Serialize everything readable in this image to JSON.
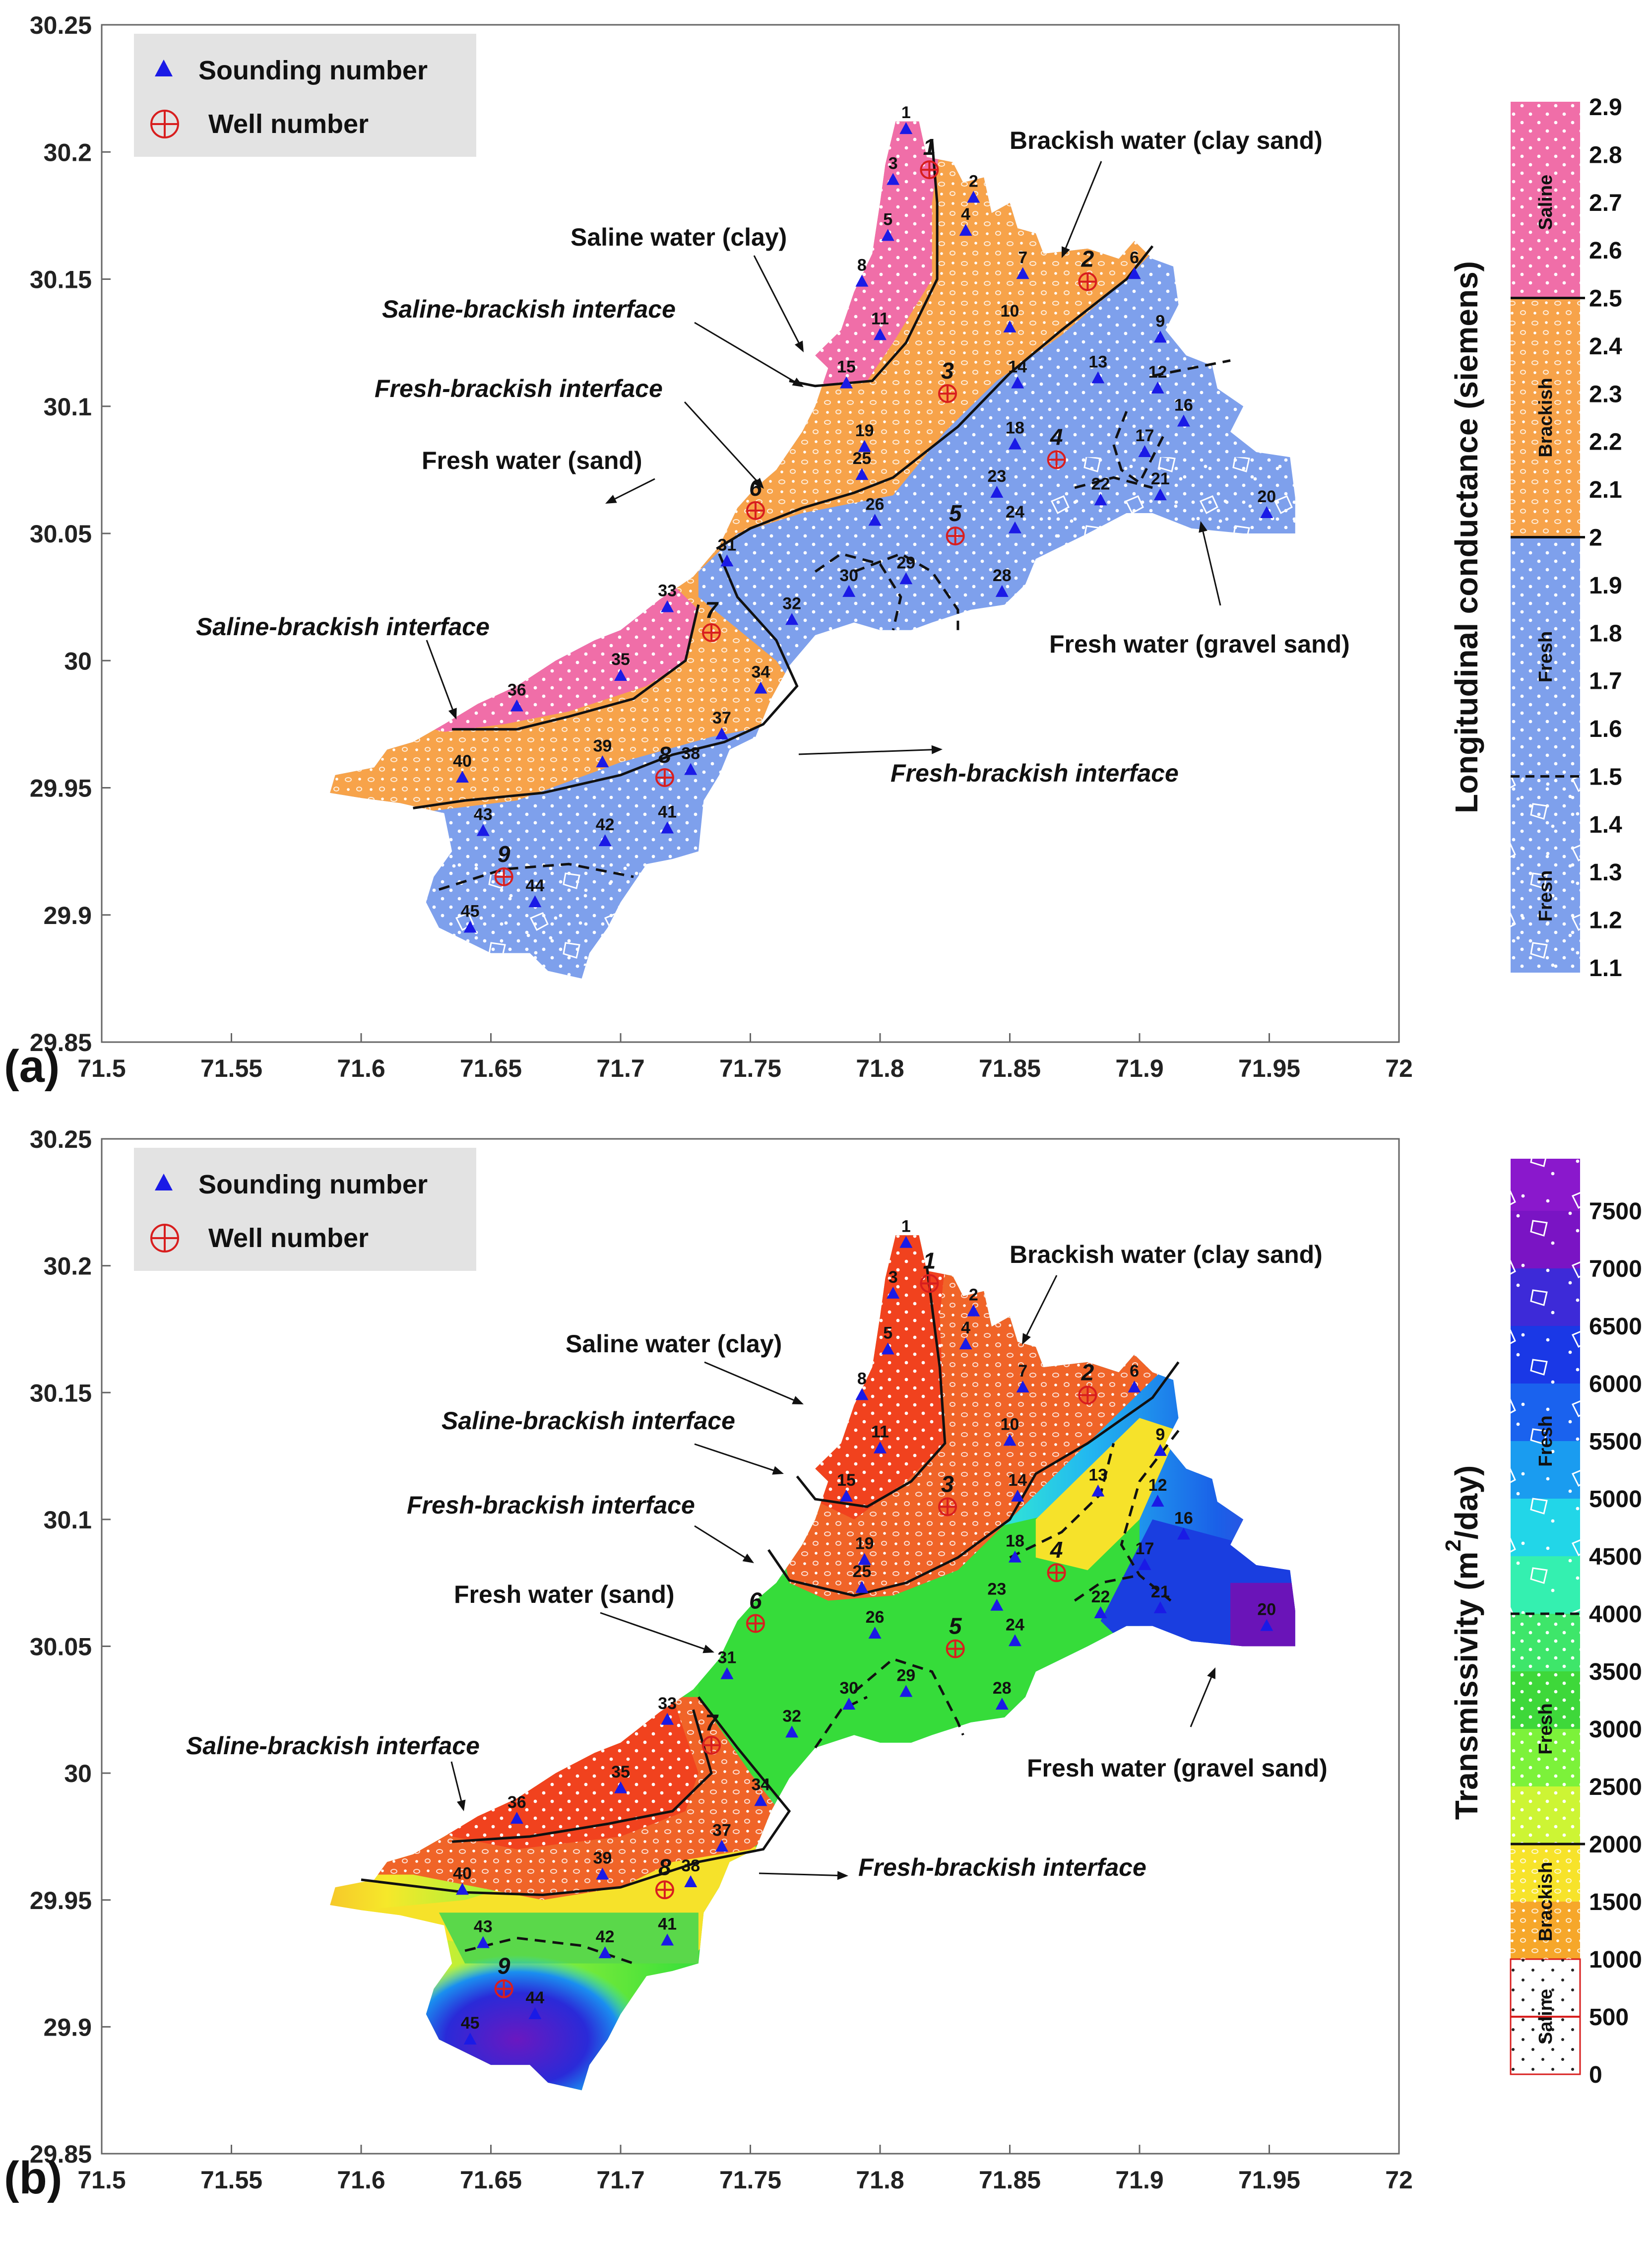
{
  "panels": [
    {
      "id": "a",
      "label": "(a)",
      "legend": {
        "sounding": "Sounding number",
        "well": "Well number"
      },
      "x_ticks": [
        "71.5",
        "71.55",
        "71.6",
        "71.65",
        "71.7",
        "71.75",
        "71.8",
        "71.85",
        "71.9",
        "71.95",
        "72"
      ],
      "y_ticks": [
        "30.25",
        "30.2",
        "30.15",
        "30.1",
        "30.05",
        "30",
        "29.95",
        "29.9",
        "29.85"
      ],
      "annotations": {
        "brackish_clay_sand": "Brackish water (clay sand)",
        "saline_clay": "Saline water (clay)",
        "saline_brackish_upper": "Saline-brackish interface",
        "fresh_brackish_upper": "Fresh-brackish interface",
        "fresh_sand": "Fresh water (sand)",
        "saline_brackish_lower": "Saline-brackish interface",
        "fresh_gravel_sand": "Fresh water (gravel sand)",
        "fresh_brackish_lower": "Fresh-brackish interface"
      },
      "colorbar": {
        "title": "Longitudinal conductance (siemens)",
        "ticks": [
          "2.9",
          "2.8",
          "2.7",
          "2.6",
          "2.5",
          "2.4",
          "2.3",
          "2.2",
          "2.1",
          "2",
          "1.9",
          "1.8",
          "1.7",
          "1.6",
          "1.5",
          "1.4",
          "1.3",
          "1.2",
          "1.1"
        ],
        "zones": [
          "Saline",
          "Brackish",
          "Fresh",
          "Fresh"
        ]
      }
    },
    {
      "id": "b",
      "label": "(b)",
      "legend": {
        "sounding": "Sounding number",
        "well": "Well number"
      },
      "x_ticks": [
        "71.5",
        "71.55",
        "71.6",
        "71.65",
        "71.7",
        "71.75",
        "71.8",
        "71.85",
        "71.9",
        "71.95",
        "72"
      ],
      "y_ticks": [
        "30.25",
        "30.2",
        "30.15",
        "30.1",
        "30.05",
        "30",
        "29.95",
        "29.9",
        "29.85"
      ],
      "annotations": {
        "brackish_clay_sand": "Brackish water (clay sand)",
        "saline_clay": "Saline water (clay)",
        "saline_brackish_upper": "Saline-brackish interface",
        "fresh_brackish_upper": "Fresh-brackish interface",
        "fresh_sand": "Fresh water (sand)",
        "saline_brackish_lower": "Saline-brackish interface",
        "fresh_gravel_sand": "Fresh water (gravel sand)",
        "fresh_brackish_lower": "Fresh-brackish interface"
      },
      "colorbar": {
        "title": "Transmissivity (m",
        "title_sup": "2",
        "title_end": "/day)",
        "ticks": [
          "7500",
          "7000",
          "6500",
          "6000",
          "5500",
          "5000",
          "4500",
          "4000",
          "3500",
          "3000",
          "2500",
          "2000",
          "1500",
          "1000",
          "500",
          "0"
        ],
        "zones": [
          "Fresh",
          "Fresh",
          "Brackish",
          "Saline"
        ]
      }
    }
  ],
  "soundings": [
    {
      "n": "1",
      "lon": 71.81,
      "lat": 30.209
    },
    {
      "n": "2",
      "lon": 71.836,
      "lat": 30.182
    },
    {
      "n": "3",
      "lon": 71.805,
      "lat": 30.189
    },
    {
      "n": "4",
      "lon": 71.833,
      "lat": 30.169
    },
    {
      "n": "5",
      "lon": 71.803,
      "lat": 30.167
    },
    {
      "n": "6",
      "lon": 71.898,
      "lat": 30.152
    },
    {
      "n": "7",
      "lon": 71.855,
      "lat": 30.152
    },
    {
      "n": "8",
      "lon": 71.793,
      "lat": 30.149
    },
    {
      "n": "9",
      "lon": 71.908,
      "lat": 30.127
    },
    {
      "n": "10",
      "lon": 71.85,
      "lat": 30.131
    },
    {
      "n": "11",
      "lon": 71.8,
      "lat": 30.128
    },
    {
      "n": "12",
      "lon": 71.907,
      "lat": 30.107
    },
    {
      "n": "13",
      "lon": 71.884,
      "lat": 30.111
    },
    {
      "n": "14",
      "lon": 71.853,
      "lat": 30.109
    },
    {
      "n": "15",
      "lon": 71.787,
      "lat": 30.109
    },
    {
      "n": "16",
      "lon": 71.917,
      "lat": 30.094
    },
    {
      "n": "17",
      "lon": 71.902,
      "lat": 30.082
    },
    {
      "n": "18",
      "lon": 71.852,
      "lat": 30.085
    },
    {
      "n": "19",
      "lon": 71.794,
      "lat": 30.084
    },
    {
      "n": "20",
      "lon": 71.949,
      "lat": 30.058
    },
    {
      "n": "21",
      "lon": 71.908,
      "lat": 30.065
    },
    {
      "n": "22",
      "lon": 71.885,
      "lat": 30.063
    },
    {
      "n": "23",
      "lon": 71.845,
      "lat": 30.066
    },
    {
      "n": "24",
      "lon": 71.852,
      "lat": 30.052
    },
    {
      "n": "25",
      "lon": 71.793,
      "lat": 30.073
    },
    {
      "n": "26",
      "lon": 71.798,
      "lat": 30.055
    },
    {
      "n": "28",
      "lon": 71.847,
      "lat": 30.027
    },
    {
      "n": "29",
      "lon": 71.81,
      "lat": 30.032
    },
    {
      "n": "30",
      "lon": 71.788,
      "lat": 30.027
    },
    {
      "n": "31",
      "lon": 71.741,
      "lat": 30.039
    },
    {
      "n": "32",
      "lon": 71.766,
      "lat": 30.016
    },
    {
      "n": "33",
      "lon": 71.718,
      "lat": 30.021
    },
    {
      "n": "34",
      "lon": 71.754,
      "lat": 29.989
    },
    {
      "n": "35",
      "lon": 71.7,
      "lat": 29.994
    },
    {
      "n": "36",
      "lon": 71.66,
      "lat": 29.982
    },
    {
      "n": "37",
      "lon": 71.739,
      "lat": 29.971
    },
    {
      "n": "38",
      "lon": 71.727,
      "lat": 29.957
    },
    {
      "n": "39",
      "lon": 71.693,
      "lat": 29.96
    },
    {
      "n": "40",
      "lon": 71.639,
      "lat": 29.954
    },
    {
      "n": "41",
      "lon": 71.718,
      "lat": 29.934
    },
    {
      "n": "42",
      "lon": 71.694,
      "lat": 29.929
    },
    {
      "n": "43",
      "lon": 71.647,
      "lat": 29.933
    },
    {
      "n": "44",
      "lon": 71.667,
      "lat": 29.905
    },
    {
      "n": "45",
      "lon": 71.642,
      "lat": 29.895
    }
  ],
  "wells": [
    {
      "n": "1",
      "lon": 71.819,
      "lat": 30.193
    },
    {
      "n": "2",
      "lon": 71.88,
      "lat": 30.149
    },
    {
      "n": "3",
      "lon": 71.826,
      "lat": 30.105
    },
    {
      "n": "4",
      "lon": 71.868,
      "lat": 30.079
    },
    {
      "n": "5",
      "lon": 71.829,
      "lat": 30.049
    },
    {
      "n": "6",
      "lon": 71.752,
      "lat": 30.059
    },
    {
      "n": "7",
      "lon": 71.735,
      "lat": 30.011
    },
    {
      "n": "8",
      "lon": 71.717,
      "lat": 29.954
    },
    {
      "n": "9",
      "lon": 71.655,
      "lat": 29.915
    }
  ],
  "colors": {
    "saline_a": "#f06ea8",
    "brackish_a": "#f7a34a",
    "fresh_a": "#7ea0ec",
    "saline_b": "#f1421e",
    "brackish_b": "#f06428",
    "well": "#d81e1e",
    "sounding": "#1a1ae6"
  }
}
